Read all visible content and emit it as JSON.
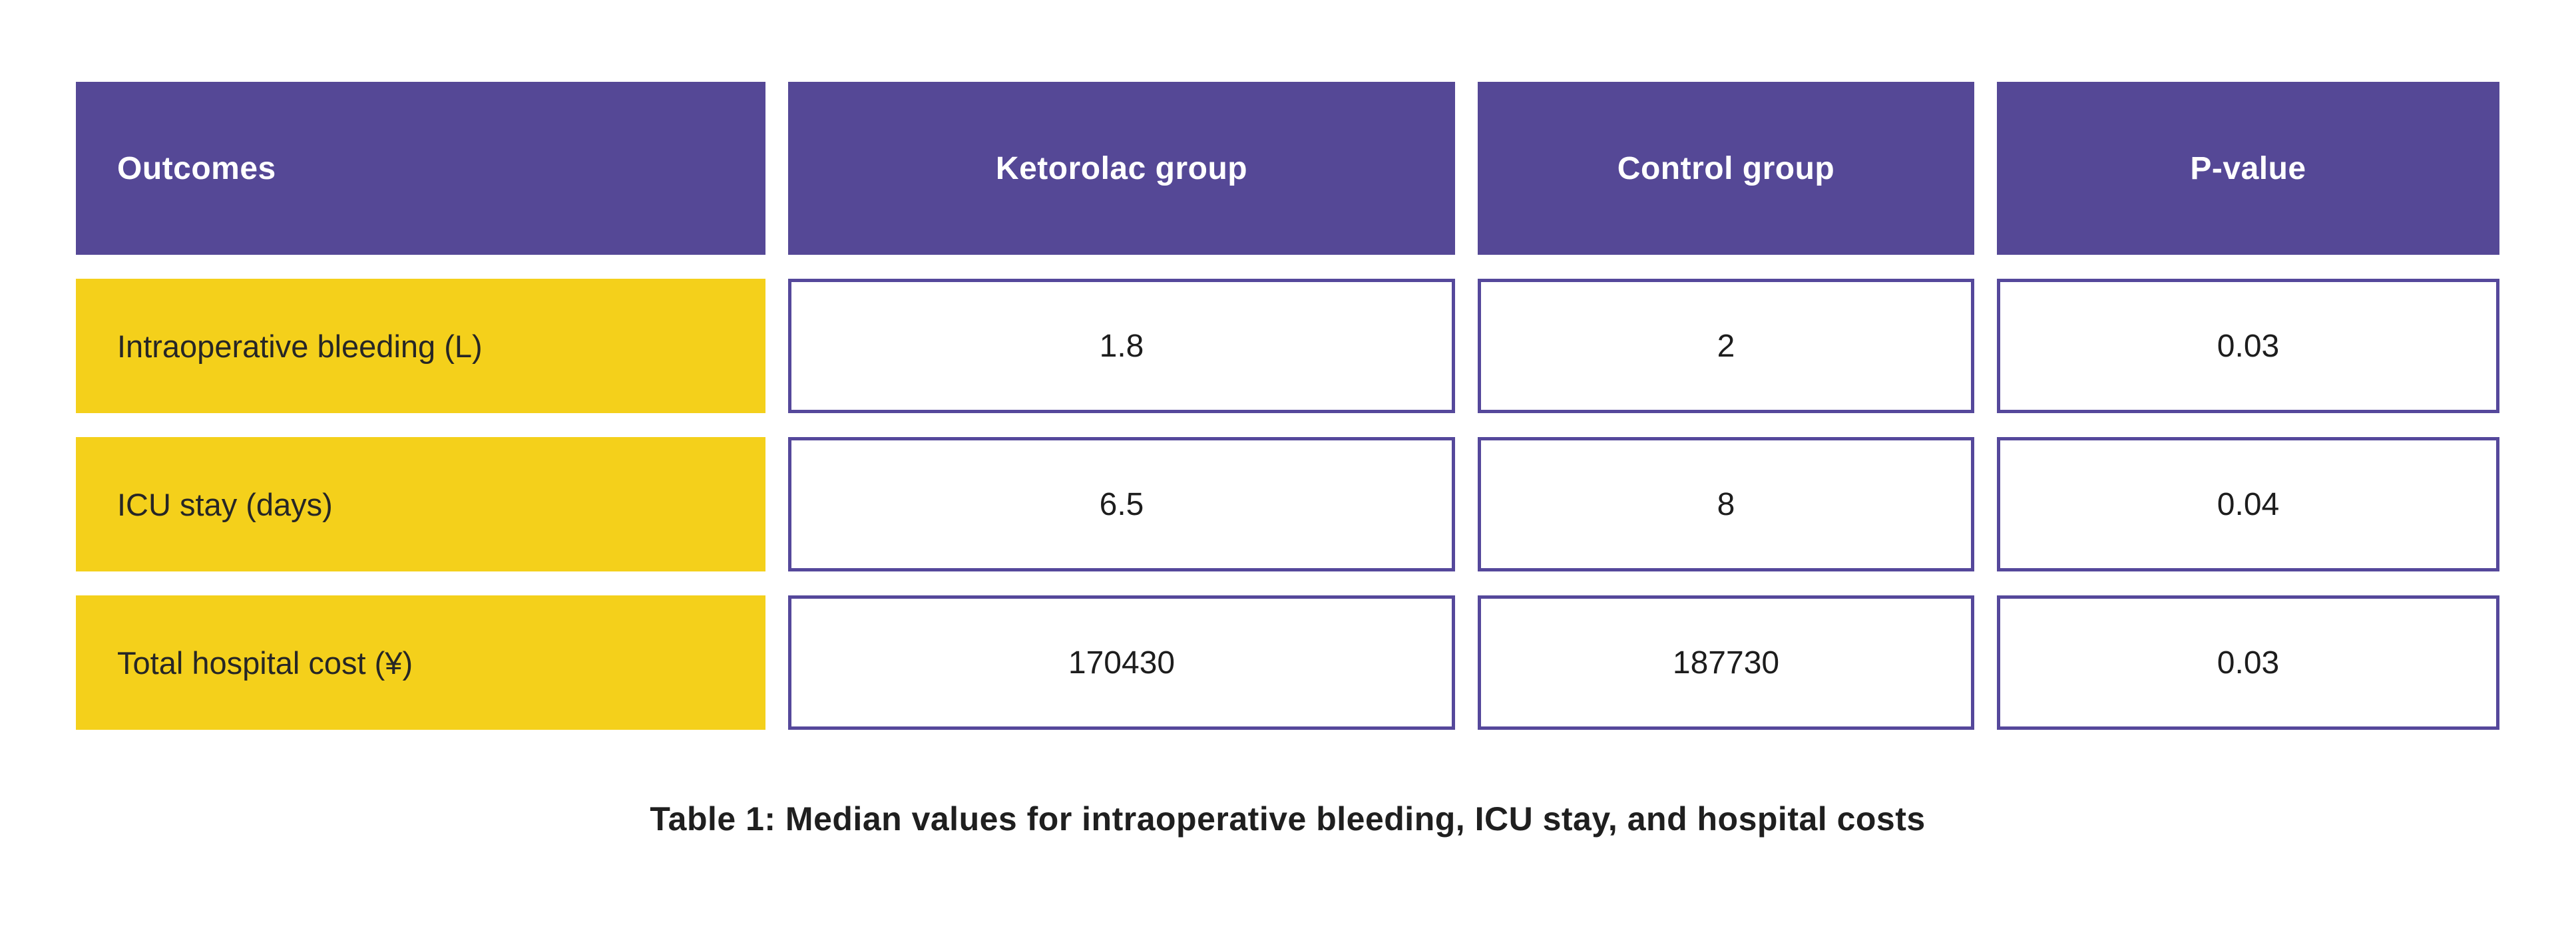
{
  "colors": {
    "page-bg": "#ffffff",
    "header-bg": "#554896",
    "header-text": "#ffffff",
    "label-bg": "#F4D01B",
    "label-text": "#262626",
    "cell-border": "#55489B",
    "cell-bg": "#ffffff",
    "cell-text": "#1d1d1d",
    "caption-text": "#1f1f1f"
  },
  "chart_data": {
    "type": "table",
    "title": "Table 1: Median values for intraoperative bleeding, ICU stay, and hospital costs",
    "columns": [
      "Outcomes",
      "Ketorolac group",
      "Control group",
      "P-value"
    ],
    "rows": [
      [
        "Intraoperative bleeding (L)",
        1.8,
        2,
        0.03
      ],
      [
        "ICU stay (days)",
        6.5,
        8,
        0.04
      ],
      [
        "Total hospital cost (¥)",
        170430,
        187730,
        0.03
      ]
    ]
  },
  "table": {
    "headers": [
      "Outcomes",
      "Ketorolac group",
      "Control group",
      "P-value"
    ],
    "rows": [
      {
        "label": "Intraoperative bleeding (L)",
        "values": [
          "1.8",
          "2",
          "0.03"
        ]
      },
      {
        "label": "ICU stay (days)",
        "values": [
          "6.5",
          "8",
          "0.04"
        ]
      },
      {
        "label": "Total hospital cost (¥)",
        "values": [
          "170430",
          "187730",
          "0.03"
        ]
      }
    ],
    "caption": "Table 1: Median values for intraoperative bleeding, ICU stay, and hospital costs"
  }
}
